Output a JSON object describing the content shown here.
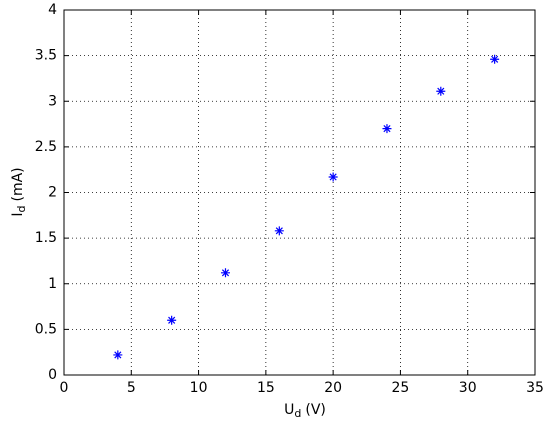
{
  "chart_data": {
    "type": "scatter",
    "xlabel": [
      "U",
      "d",
      "(V)"
    ],
    "ylabel": [
      "I",
      "d",
      "(mA)"
    ],
    "x": [
      4,
      8,
      12,
      16,
      20,
      24,
      28,
      32
    ],
    "series": [
      {
        "color": "#0000ff",
        "marker": "*",
        "values": [
          0.22,
          0.6,
          1.12,
          1.58,
          2.17,
          2.7,
          3.11,
          3.46
        ]
      }
    ],
    "xlim": [
      0,
      35
    ],
    "xticks": [
      0,
      5,
      10,
      15,
      20,
      25,
      30,
      35
    ],
    "ylim": [
      0,
      4
    ],
    "yticks": [
      0,
      0.5,
      1,
      1.5,
      2,
      2.5,
      3,
      3.5,
      4
    ],
    "grid": true
  }
}
